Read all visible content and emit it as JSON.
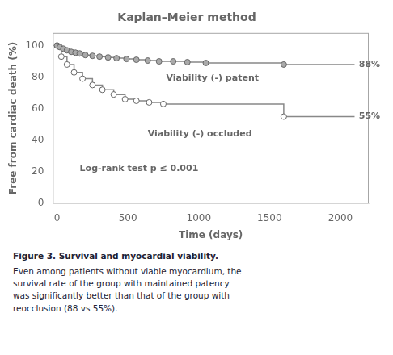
{
  "chart_data": {
    "type": "line",
    "title": "Kaplan–Meier method",
    "x_label": "Time (days)",
    "y_label": "Free from cardiac death (%)",
    "xlim": [
      -30,
      2200
    ],
    "ylim": [
      0,
      108
    ],
    "xticks": [
      0,
      500,
      1000,
      1500,
      2000
    ],
    "yticks": [
      0,
      20,
      40,
      60,
      80,
      100
    ],
    "grid": false,
    "series": [
      {
        "type": "line",
        "line_style": "solid",
        "marker": "none",
        "color": "#888888",
        "x": [
          0,
          20,
          45,
          70,
          100,
          130,
          160,
          200,
          250,
          300,
          360,
          420,
          490,
          560,
          640,
          720,
          820,
          920,
          1050,
          1200,
          1400,
          1600,
          2100
        ],
        "values": [
          100,
          99,
          98,
          97,
          96,
          95.5,
          95,
          94,
          93.5,
          93,
          92.5,
          92,
          91.5,
          91,
          90.5,
          90,
          90,
          89.5,
          89,
          89,
          89,
          88,
          88
        ]
      },
      {
        "type": "scatter",
        "marker": "circle",
        "color": "#aaaaaa",
        "x": [
          0,
          20,
          45,
          70,
          100,
          130,
          160,
          200,
          250,
          300,
          360,
          420,
          490,
          560,
          640,
          720,
          820,
          920,
          1050,
          1600
        ],
        "values": [
          100,
          99,
          98,
          97,
          96,
          95.5,
          95,
          94,
          93.5,
          93,
          92.5,
          92,
          91.5,
          91,
          90.5,
          90,
          90,
          89.5,
          89,
          88
        ]
      },
      {
        "type": "line",
        "line_style": "solid",
        "marker": "none",
        "color": "#888888",
        "x": [
          0,
          30,
          70,
          120,
          180,
          250,
          320,
          400,
          480,
          560,
          650,
          750,
          1600,
          2100
        ],
        "values": [
          100,
          93,
          88,
          83,
          79,
          75,
          72,
          69,
          66,
          65,
          64,
          63,
          55,
          55
        ]
      },
      {
        "type": "scatter",
        "marker": "circle",
        "color": "#ffffff",
        "x": [
          0,
          30,
          70,
          120,
          180,
          250,
          320,
          400,
          480,
          560,
          650,
          750,
          1600
        ],
        "values": [
          100,
          93,
          88,
          83,
          79,
          75,
          72,
          69,
          66,
          65,
          64,
          63,
          55
        ]
      }
    ],
    "annotations": [
      {
        "text": "Viability (-) patent",
        "x": 770,
        "y": 79
      },
      {
        "text": "Viability (-) occluded",
        "x": 640,
        "y": 44
      },
      {
        "text": "Log-rank test p ≤ 0.001",
        "x": 160,
        "y": 22
      },
      {
        "text": "88%",
        "x": 2130,
        "y": 88
      },
      {
        "text": "55%",
        "x": 2130,
        "y": 55
      }
    ],
    "caption_title": "Figure 3. Survival and myocardial viability.",
    "caption_lines": [
      "Even among patients without viable myocardium, the",
      "survival rate of the group with maintained patency",
      "was significantly better than that of the group with",
      "reocclusion (88 vs 55%)."
    ]
  }
}
